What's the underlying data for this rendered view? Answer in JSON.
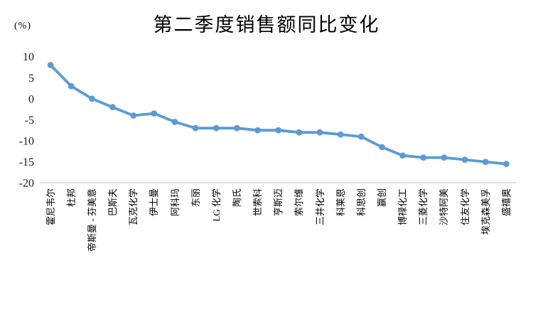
{
  "chart_data": {
    "type": "line",
    "title": "第二季度销售额同比变化",
    "unit_label": "(%)",
    "categories": [
      "霍尼韦尔",
      "杜邦",
      "帝斯曼 - 芬美意",
      "巴斯夫",
      "瓦克化学",
      "伊士曼",
      "阿科玛",
      "东丽",
      "LG 化学",
      "陶氏",
      "世索科",
      "亨斯迈",
      "索尔维",
      "三井化学",
      "科莱恩",
      "科思创",
      "赢创",
      "博禄化工",
      "三菱化学",
      "沙特阿美",
      "住友化学",
      "埃克森美孚",
      "盛禧奥"
    ],
    "values": [
      8,
      3,
      0,
      -2,
      -4,
      -3.5,
      -5.5,
      -7,
      -7,
      -7,
      -7.5,
      -7.5,
      -8,
      -8,
      -8.5,
      -9,
      -11.5,
      -13.5,
      -14,
      -14,
      -14.5,
      -15,
      -15.5
    ],
    "ylim": [
      -20,
      10
    ],
    "ytick_step": 5,
    "ytick_labels": [
      "10",
      "5",
      "0",
      "-5",
      "-10",
      "-15",
      "-20"
    ],
    "xlabel": "",
    "ylabel": "(%)",
    "grid": "off",
    "legend": "none",
    "series_color": "#5b9bd5",
    "axis_line_color": "#d9d9d9",
    "text_color": "#1a1a1a"
  }
}
